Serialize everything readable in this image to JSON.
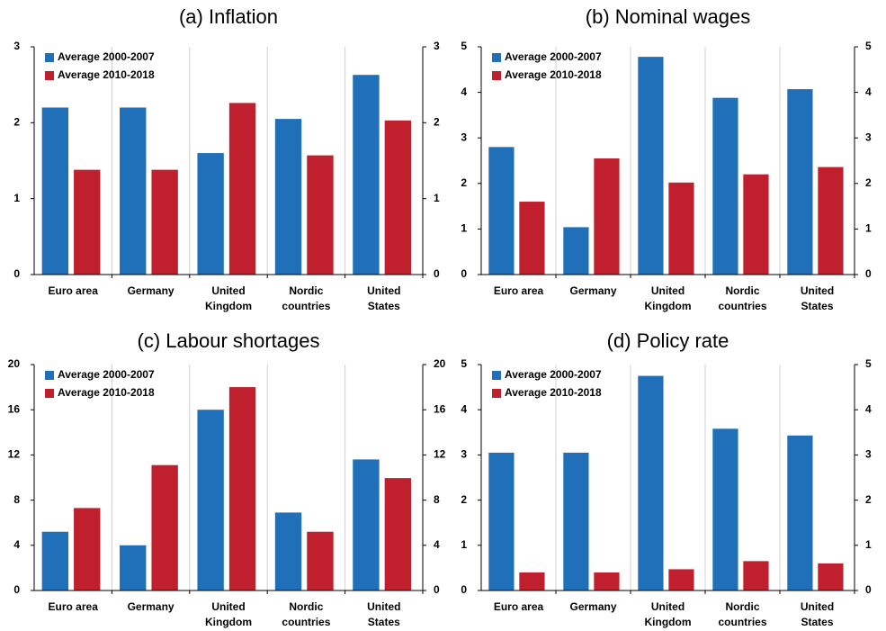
{
  "chart_data": [
    {
      "type": "bar",
      "title": "(a) Inflation",
      "categories": [
        "Euro area",
        "Germany",
        "United\nKingdom",
        "Nordic\ncountries",
        "United\nStates"
      ],
      "series": [
        {
          "name": "Average 2000-2007",
          "color": "#1f70b8",
          "values": [
            2.2,
            2.2,
            1.6,
            2.05,
            2.63
          ]
        },
        {
          "name": "Average 2010-2018",
          "color": "#c0202e",
          "values": [
            1.38,
            1.38,
            2.26,
            1.57,
            2.03
          ]
        }
      ],
      "ylim": [
        0,
        3
      ],
      "yticks": [
        0,
        1,
        2,
        3
      ],
      "y2lim": [
        0,
        3
      ],
      "y2ticks": [
        0,
        1,
        2,
        3
      ],
      "legend": "upper left"
    },
    {
      "type": "bar",
      "title": "(b) Nominal wages",
      "categories": [
        "Euro area",
        "Germany",
        "United\nKingdom",
        "Nordic\ncountries",
        "United\nStates"
      ],
      "series": [
        {
          "name": "Average 2000-2007",
          "color": "#1f70b8",
          "values": [
            2.8,
            1.04,
            4.78,
            3.88,
            4.07
          ]
        },
        {
          "name": "Average 2010-2018",
          "color": "#c0202e",
          "values": [
            1.6,
            2.55,
            2.02,
            2.2,
            2.36
          ]
        }
      ],
      "ylim": [
        0,
        5
      ],
      "yticks": [
        0,
        1,
        2,
        3,
        4,
        5
      ],
      "y2lim": [
        0,
        5
      ],
      "y2ticks": [
        0,
        1,
        2,
        3,
        4,
        5
      ],
      "legend": "upper left"
    },
    {
      "type": "bar",
      "title": "(c) Labour shortages",
      "categories": [
        "Euro area",
        "Germany",
        "United\nKingdom",
        "Nordic\ncountries",
        "United\nStates"
      ],
      "series": [
        {
          "name": "Average 2000-2007",
          "color": "#1f70b8",
          "values": [
            5.2,
            4.0,
            16.0,
            6.9,
            11.6
          ]
        },
        {
          "name": "Average 2010-2018",
          "color": "#c0202e",
          "values": [
            7.3,
            11.1,
            18.0,
            5.2,
            9.95
          ]
        }
      ],
      "ylim": [
        0,
        20
      ],
      "yticks": [
        0,
        4,
        8,
        12,
        16,
        20
      ],
      "y2lim": [
        0,
        20
      ],
      "y2ticks": [
        0,
        4,
        8,
        12,
        16,
        20
      ],
      "legend": "upper left"
    },
    {
      "type": "bar",
      "title": "(d) Policy rate",
      "categories": [
        "Euro area",
        "Germany",
        "United\nKingdom",
        "Nordic\ncountries",
        "United\nStates"
      ],
      "series": [
        {
          "name": "Average 2000-2007",
          "color": "#1f70b8",
          "values": [
            3.05,
            3.05,
            4.75,
            3.58,
            3.43
          ]
        },
        {
          "name": "Average 2010-2018",
          "color": "#c0202e",
          "values": [
            0.4,
            0.4,
            0.47,
            0.65,
            0.6
          ]
        }
      ],
      "ylim": [
        0,
        5
      ],
      "yticks": [
        0,
        1,
        2,
        3,
        4,
        5
      ],
      "y2lim": [
        0,
        5
      ],
      "y2ticks": [
        0,
        1,
        2,
        3,
        4,
        5
      ],
      "legend": "upper left"
    }
  ]
}
